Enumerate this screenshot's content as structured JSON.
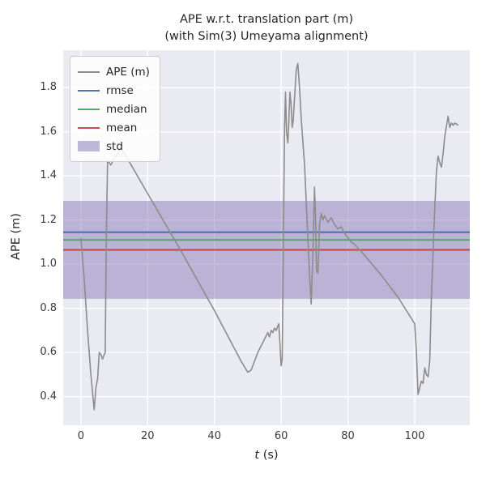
{
  "title_line1": "APE w.r.t. translation part (m)",
  "title_line2": "(with Sim(3) Umeyama alignment)",
  "xlabel_italic": "t",
  "xlabel_suffix": " (s)",
  "ylabel": "APE (m)",
  "legend": {
    "items": [
      {
        "label": "APE (m)",
        "color": "#8c8c8c",
        "type": "line"
      },
      {
        "label": "rmse",
        "color": "#4C72B0",
        "type": "line"
      },
      {
        "label": "median",
        "color": "#55A868",
        "type": "line"
      },
      {
        "label": "mean",
        "color": "#C44E52",
        "type": "line"
      },
      {
        "label": "std",
        "color": "#8172B2",
        "type": "patch"
      }
    ]
  },
  "chart_data": {
    "type": "line",
    "title": "APE w.r.t. translation part (m) (with Sim(3) Umeyama alignment)",
    "xlabel": "t (s)",
    "ylabel": "APE (m)",
    "xlim": [
      -5.3,
      116.5
    ],
    "ylim": [
      0.27,
      1.97
    ],
    "xticks": [
      0,
      20,
      40,
      60,
      80,
      100
    ],
    "xtick_labels": [
      "0",
      "20",
      "40",
      "60",
      "80",
      "100"
    ],
    "yticks": [
      0.4,
      0.6,
      0.8,
      1.0,
      1.2,
      1.4,
      1.6,
      1.8
    ],
    "ytick_labels": [
      "0.4",
      "0.6",
      "0.8",
      "1.0",
      "1.2",
      "1.4",
      "1.6",
      "1.8"
    ],
    "grid": true,
    "legend_position": "upper left",
    "stats": {
      "rmse": 1.145,
      "median": 1.11,
      "mean": 1.065,
      "std": 0.222,
      "std_band": [
        0.843,
        1.287
      ]
    },
    "colors": {
      "ape": "#8c8c8c",
      "rmse": "#4C72B0",
      "median": "#55A868",
      "mean": "#C44E52",
      "std": "#8172B2",
      "plot_bg": "#EAEAF2",
      "grid": "#ffffff"
    },
    "series": [
      {
        "name": "APE (m)",
        "points": [
          [
            0,
            1.12
          ],
          [
            1,
            0.93
          ],
          [
            2,
            0.7
          ],
          [
            3,
            0.5
          ],
          [
            4,
            0.34
          ],
          [
            4.5,
            0.44
          ],
          [
            5,
            0.48
          ],
          [
            5.5,
            0.6
          ],
          [
            6,
            0.59
          ],
          [
            6.5,
            0.57
          ],
          [
            7,
            0.59
          ],
          [
            7.3,
            0.6
          ],
          [
            7.6,
            1.1
          ],
          [
            8,
            1.47
          ],
          [
            9,
            1.45
          ],
          [
            10,
            1.48
          ],
          [
            11,
            1.5
          ],
          [
            12,
            1.53
          ],
          [
            20,
            1.32
          ],
          [
            30,
            1.06
          ],
          [
            40,
            0.79
          ],
          [
            48,
            0.56
          ],
          [
            50,
            0.51
          ],
          [
            51,
            0.52
          ],
          [
            52,
            0.56
          ],
          [
            53,
            0.6
          ],
          [
            54,
            0.63
          ],
          [
            55,
            0.66
          ],
          [
            56,
            0.69
          ],
          [
            56.5,
            0.67
          ],
          [
            57,
            0.7
          ],
          [
            57.5,
            0.69
          ],
          [
            58,
            0.71
          ],
          [
            58.5,
            0.7
          ],
          [
            59,
            0.72
          ],
          [
            59.3,
            0.73
          ],
          [
            59.6,
            0.65
          ],
          [
            60,
            0.54
          ],
          [
            60.3,
            0.57
          ],
          [
            60.6,
            1.0
          ],
          [
            61,
            1.62
          ],
          [
            61.3,
            1.78
          ],
          [
            61.6,
            1.6
          ],
          [
            62,
            1.55
          ],
          [
            62.3,
            1.65
          ],
          [
            62.6,
            1.78
          ],
          [
            63,
            1.72
          ],
          [
            63.3,
            1.62
          ],
          [
            63.6,
            1.65
          ],
          [
            64,
            1.75
          ],
          [
            64.5,
            1.88
          ],
          [
            65,
            1.91
          ],
          [
            65.5,
            1.8
          ],
          [
            66,
            1.66
          ],
          [
            67,
            1.45
          ],
          [
            68,
            1.12
          ],
          [
            68.5,
            0.95
          ],
          [
            69,
            0.82
          ],
          [
            69.5,
            1.05
          ],
          [
            70,
            1.35
          ],
          [
            70.3,
            1.2
          ],
          [
            70.6,
            0.97
          ],
          [
            71,
            0.96
          ],
          [
            71.5,
            1.18
          ],
          [
            72,
            1.23
          ],
          [
            72.5,
            1.2
          ],
          [
            73,
            1.22
          ],
          [
            74,
            1.19
          ],
          [
            75,
            1.21
          ],
          [
            76,
            1.18
          ],
          [
            77,
            1.16
          ],
          [
            78,
            1.17
          ],
          [
            79,
            1.14
          ],
          [
            80,
            1.12
          ],
          [
            81,
            1.1
          ],
          [
            82,
            1.09
          ],
          [
            85,
            1.04
          ],
          [
            90,
            0.95
          ],
          [
            95,
            0.85
          ],
          [
            100,
            0.73
          ],
          [
            100.5,
            0.6
          ],
          [
            101,
            0.41
          ],
          [
            101.5,
            0.44
          ],
          [
            102,
            0.47
          ],
          [
            102.5,
            0.46
          ],
          [
            103,
            0.53
          ],
          [
            103.5,
            0.5
          ],
          [
            104,
            0.49
          ],
          [
            104.5,
            0.56
          ],
          [
            105,
            0.85
          ],
          [
            106,
            1.25
          ],
          [
            106.5,
            1.42
          ],
          [
            107,
            1.49
          ],
          [
            107.5,
            1.46
          ],
          [
            108,
            1.44
          ],
          [
            108.5,
            1.5
          ],
          [
            109,
            1.58
          ],
          [
            110,
            1.67
          ],
          [
            110.5,
            1.62
          ],
          [
            111,
            1.64
          ],
          [
            111.5,
            1.63
          ],
          [
            112,
            1.64
          ],
          [
            113,
            1.63
          ]
        ]
      }
    ]
  }
}
